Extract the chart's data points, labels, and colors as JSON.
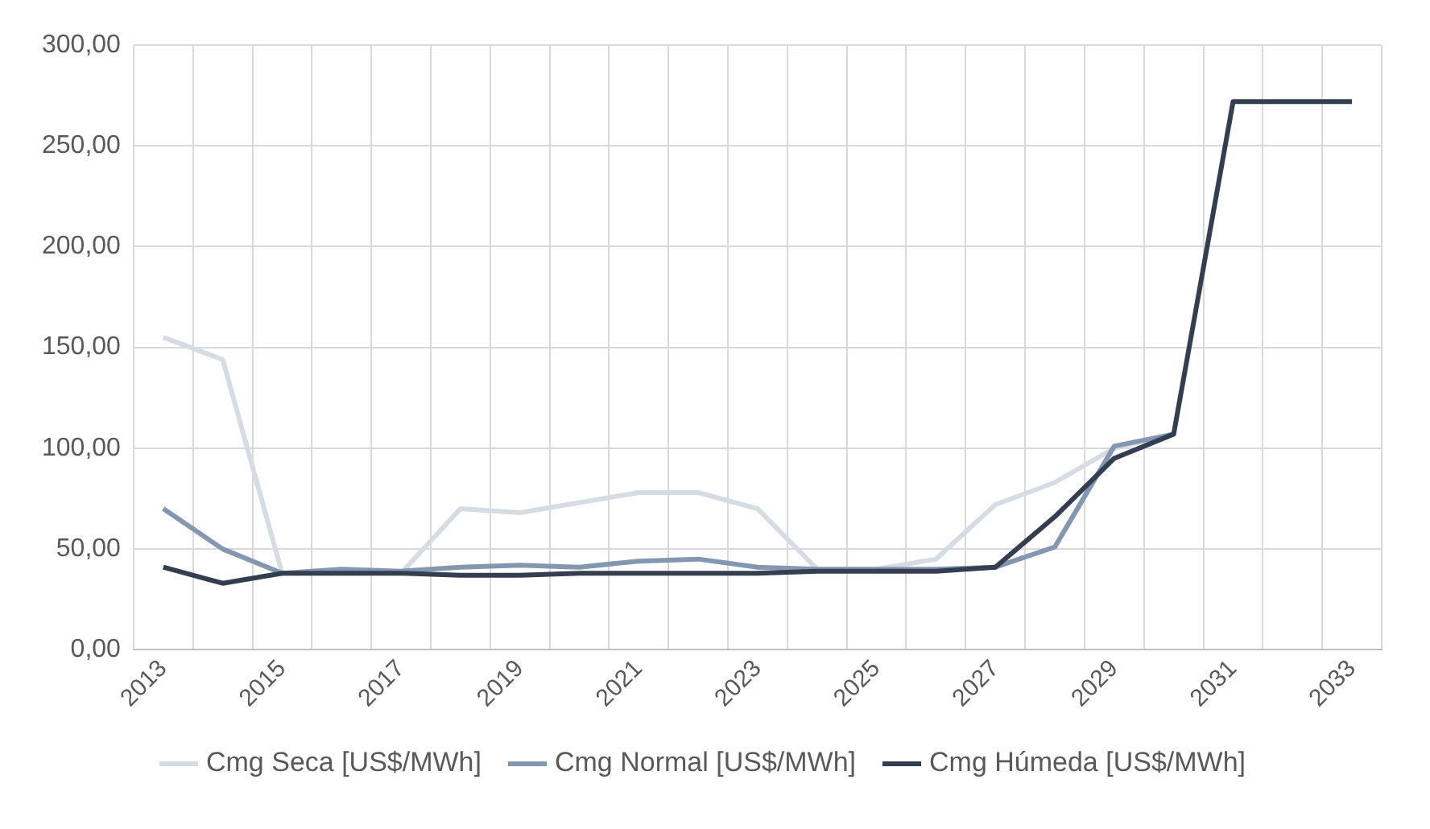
{
  "chart_data": {
    "type": "line",
    "categories": [
      "2013",
      null,
      "2015",
      null,
      "2017",
      null,
      "2019",
      null,
      "2021",
      null,
      "2023",
      null,
      "2025",
      null,
      "2027",
      null,
      "2029",
      null,
      "2031",
      null,
      "2033"
    ],
    "series": [
      {
        "name": "Cmg Seca [US$/MWh]",
        "color": "#d6dce4",
        "values": [
          155,
          144,
          38,
          38,
          38,
          70,
          68,
          73,
          78,
          78,
          70,
          40,
          40,
          45,
          72,
          83,
          100,
          107,
          null,
          null,
          null
        ]
      },
      {
        "name": "Cmg Normal [US$/MWh]",
        "color": "#8497b0",
        "values": [
          70,
          50,
          38,
          40,
          39,
          41,
          42,
          41,
          44,
          45,
          41,
          40,
          40,
          40,
          41,
          51,
          101,
          107,
          null,
          null,
          null
        ]
      },
      {
        "name": "Cmg Húmeda [US$/MWh]",
        "color": "#333f50",
        "values": [
          41,
          33,
          38,
          38,
          38,
          37,
          37,
          38,
          38,
          38,
          38,
          39,
          39,
          39,
          41,
          66,
          95,
          107,
          272,
          272,
          272
        ]
      }
    ],
    "ylim": [
      0,
      300
    ],
    "yticks": [
      {
        "value": 0,
        "label": "0,00"
      },
      {
        "value": 50,
        "label": "50,00"
      },
      {
        "value": 100,
        "label": "100,00"
      },
      {
        "value": 150,
        "label": "150,00"
      },
      {
        "value": 200,
        "label": "200,00"
      },
      {
        "value": 250,
        "label": "250,00"
      },
      {
        "value": 300,
        "label": "300,00"
      }
    ],
    "grid": true,
    "legend": "bottom",
    "marker": "none",
    "line_style": "solid"
  }
}
